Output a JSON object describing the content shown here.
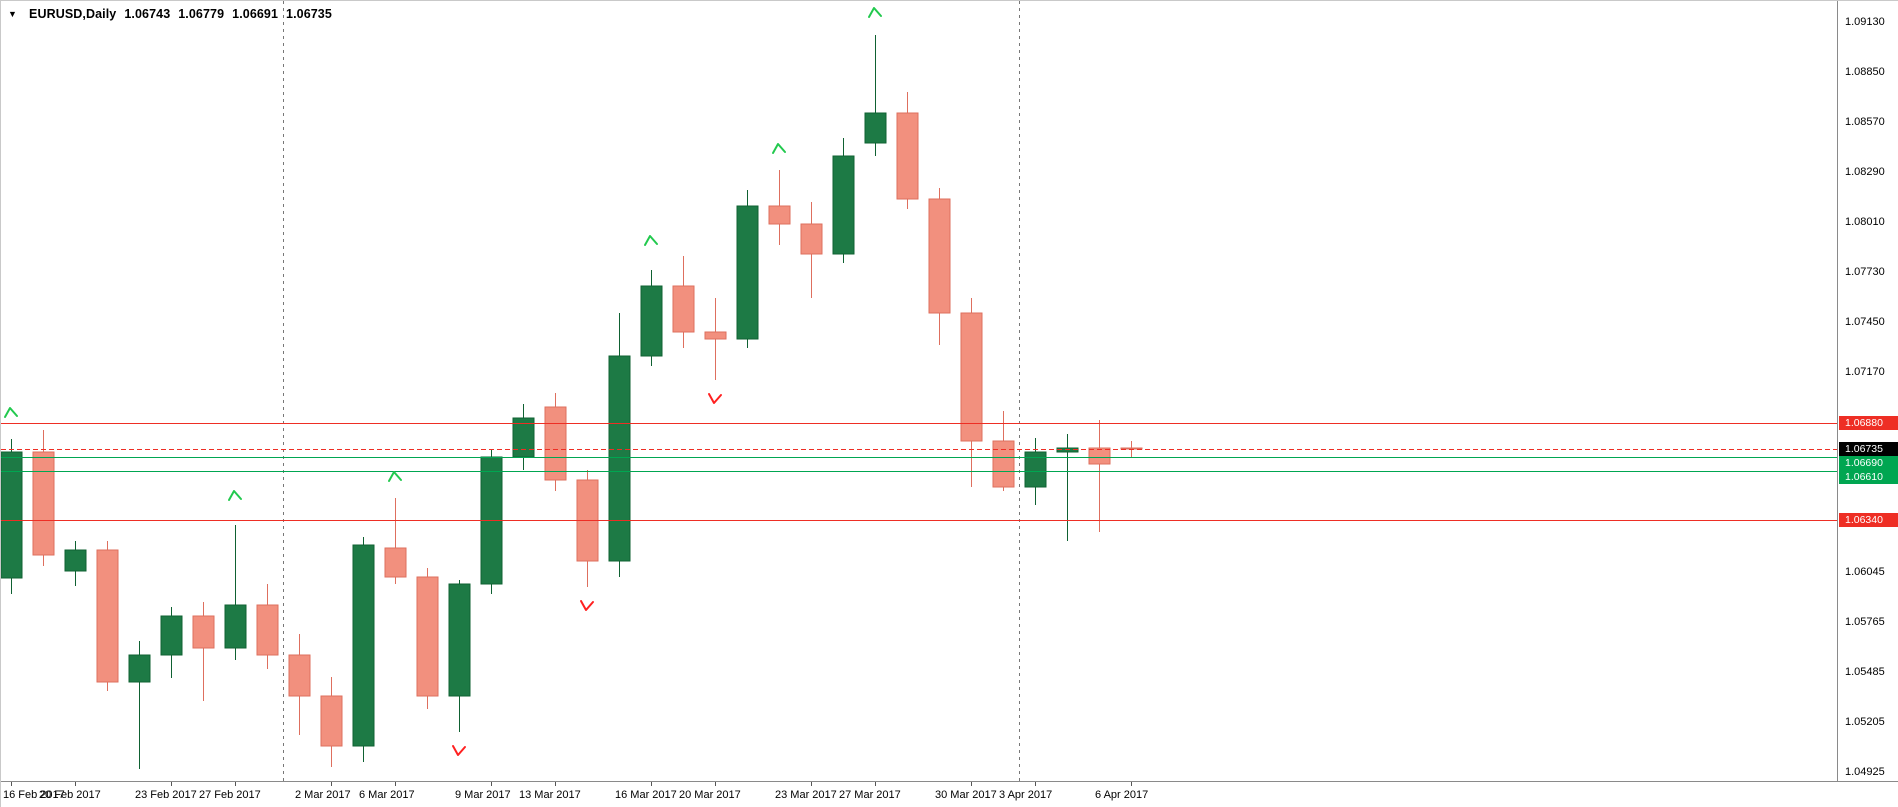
{
  "header": {
    "dropdown_icon": "▼",
    "symbol_label": "EURUSD,Daily",
    "open": "1.06743",
    "high": "1.06779",
    "low": "1.06691",
    "close": "1.06735"
  },
  "colors": {
    "background": "#ffffff",
    "text": "#000000",
    "bull_fill": "#1d7a45",
    "bull_stroke": "#0f6132",
    "bear_fill": "#f2907e",
    "bear_stroke": "#de6f5e",
    "line_red": "#ee2e24",
    "line_green": "#00a651",
    "last_price_bg": "#000000",
    "separator": "#777777",
    "arrow_up": "#22c94e",
    "arrow_down": "#ff2020"
  },
  "chart_data": {
    "type": "candlestick",
    "title": "EURUSD,Daily",
    "symbol": "EURUSD",
    "timeframe": "Daily",
    "grid": "off",
    "price_axis": {
      "visible_min": 1.04874,
      "visible_max": 1.09248,
      "ticks": [
        {
          "price": 1.0913,
          "label": "1.09130"
        },
        {
          "price": 1.0885,
          "label": "1.08850"
        },
        {
          "price": 1.0857,
          "label": "1.08570"
        },
        {
          "price": 1.0829,
          "label": "1.08290"
        },
        {
          "price": 1.0801,
          "label": "1.08010"
        },
        {
          "price": 1.0773,
          "label": "1.07730"
        },
        {
          "price": 1.0745,
          "label": "1.07450"
        },
        {
          "price": 1.0717,
          "label": "1.07170"
        },
        {
          "price": 1.0689,
          "label": "1.06890"
        },
        {
          "price": 1.0661,
          "label": "1.06610"
        },
        {
          "price": 1.0633,
          "label": "1.06330"
        },
        {
          "price": 1.06045,
          "label": "1.06045"
        },
        {
          "price": 1.05765,
          "label": "1.05765"
        },
        {
          "price": 1.05485,
          "label": "1.05485"
        },
        {
          "price": 1.05205,
          "label": "1.05205"
        },
        {
          "price": 1.04925,
          "label": "1.04925"
        }
      ]
    },
    "time_axis": {
      "labels": [
        {
          "text": "16 Feb 2017",
          "candle_index": 0
        },
        {
          "text": "20 Feb 2017",
          "candle_index": 2
        },
        {
          "text": "23 Feb 2017",
          "candle_index": 5
        },
        {
          "text": "27 Feb 2017",
          "candle_index": 7
        },
        {
          "text": "2 Mar 2017",
          "candle_index": 10
        },
        {
          "text": "6 Mar 2017",
          "candle_index": 12
        },
        {
          "text": "9 Mar 2017",
          "candle_index": 15
        },
        {
          "text": "13 Mar 2017",
          "candle_index": 17
        },
        {
          "text": "16 Mar 2017",
          "candle_index": 20
        },
        {
          "text": "20 Mar 2017",
          "candle_index": 22
        },
        {
          "text": "23 Mar 2017",
          "candle_index": 25
        },
        {
          "text": "27 Mar 2017",
          "candle_index": 27
        },
        {
          "text": "30 Mar 2017",
          "candle_index": 30
        },
        {
          "text": "3 Apr 2017",
          "candle_index": 32
        },
        {
          "text": "6 Apr 2017",
          "candle_index": 35
        }
      ]
    },
    "candles": [
      {
        "d": "16 Feb 2017",
        "o": 1.0601,
        "h": 1.0679,
        "l": 1.0592,
        "c": 1.0672
      },
      {
        "d": "17 Feb 2017",
        "o": 1.0672,
        "h": 1.0684,
        "l": 1.0608,
        "c": 1.0614
      },
      {
        "d": "20 Feb 2017",
        "o": 1.0605,
        "h": 1.0622,
        "l": 1.0597,
        "c": 1.0617
      },
      {
        "d": "21 Feb 2017",
        "o": 1.0617,
        "h": 1.0622,
        "l": 1.0538,
        "c": 1.0543
      },
      {
        "d": "22 Feb 2017",
        "o": 1.0543,
        "h": 1.0566,
        "l": 1.0494,
        "c": 1.0558
      },
      {
        "d": "23 Feb 2017",
        "o": 1.0558,
        "h": 1.0585,
        "l": 1.0545,
        "c": 1.058
      },
      {
        "d": "24 Feb 2017",
        "o": 1.058,
        "h": 1.0588,
        "l": 1.0532,
        "c": 1.0562
      },
      {
        "d": "27 Feb 2017",
        "o": 1.0562,
        "h": 1.0631,
        "l": 1.0555,
        "c": 1.0586
      },
      {
        "d": "28 Feb 2017",
        "o": 1.0586,
        "h": 1.0598,
        "l": 1.055,
        "c": 1.0558
      },
      {
        "d": "1 Mar 2017",
        "o": 1.0558,
        "h": 1.057,
        "l": 1.0513,
        "c": 1.0535
      },
      {
        "d": "2 Mar 2017",
        "o": 1.0535,
        "h": 1.0546,
        "l": 1.0495,
        "c": 1.0507
      },
      {
        "d": "3 Mar 2017",
        "o": 1.0507,
        "h": 1.0624,
        "l": 1.0498,
        "c": 1.062
      },
      {
        "d": "6 Mar 2017",
        "o": 1.0618,
        "h": 1.0646,
        "l": 1.0598,
        "c": 1.0602
      },
      {
        "d": "7 Mar 2017",
        "o": 1.0602,
        "h": 1.0607,
        "l": 1.0528,
        "c": 1.0535
      },
      {
        "d": "8 Mar 2017",
        "o": 1.0535,
        "h": 1.06,
        "l": 1.0515,
        "c": 1.0598
      },
      {
        "d": "9 Mar 2017",
        "o": 1.0598,
        "h": 1.0673,
        "l": 1.0592,
        "c": 1.0669
      },
      {
        "d": "10 Mar 2017",
        "o": 1.0669,
        "h": 1.0699,
        "l": 1.0662,
        "c": 1.0691
      },
      {
        "d": "13 Mar 2017",
        "o": 1.0697,
        "h": 1.0705,
        "l": 1.065,
        "c": 1.0656
      },
      {
        "d": "14 Mar 2017",
        "o": 1.0656,
        "h": 1.0662,
        "l": 1.0596,
        "c": 1.0611
      },
      {
        "d": "15 Mar 2017",
        "o": 1.0611,
        "h": 1.075,
        "l": 1.0602,
        "c": 1.0726
      },
      {
        "d": "16 Mar 2017",
        "o": 1.0726,
        "h": 1.0774,
        "l": 1.072,
        "c": 1.0765
      },
      {
        "d": "17 Mar 2017",
        "o": 1.0765,
        "h": 1.0782,
        "l": 1.073,
        "c": 1.0739
      },
      {
        "d": "20 Mar 2017",
        "o": 1.0739,
        "h": 1.0758,
        "l": 1.0712,
        "c": 1.0735
      },
      {
        "d": "21 Mar 2017",
        "o": 1.0735,
        "h": 1.0819,
        "l": 1.073,
        "c": 1.081
      },
      {
        "d": "22 Mar 2017",
        "o": 1.081,
        "h": 1.083,
        "l": 1.0788,
        "c": 1.08
      },
      {
        "d": "23 Mar 2017",
        "o": 1.08,
        "h": 1.0812,
        "l": 1.0758,
        "c": 1.0783
      },
      {
        "d": "24 Mar 2017",
        "o": 1.0783,
        "h": 1.0848,
        "l": 1.0778,
        "c": 1.0838
      },
      {
        "d": "27 Mar 2017",
        "o": 1.0845,
        "h": 1.0906,
        "l": 1.0838,
        "c": 1.0862
      },
      {
        "d": "28 Mar 2017",
        "o": 1.0862,
        "h": 1.0874,
        "l": 1.0808,
        "c": 1.0814
      },
      {
        "d": "29 Mar 2017",
        "o": 1.0814,
        "h": 1.082,
        "l": 1.0732,
        "c": 1.075
      },
      {
        "d": "30 Mar 2017",
        "o": 1.075,
        "h": 1.0758,
        "l": 1.0652,
        "c": 1.0678
      },
      {
        "d": "31 Mar 2017",
        "o": 1.0678,
        "h": 1.0695,
        "l": 1.065,
        "c": 1.0652
      },
      {
        "d": "3 Apr 2017",
        "o": 1.0652,
        "h": 1.068,
        "l": 1.0642,
        "c": 1.0672
      },
      {
        "d": "4 Apr 2017",
        "o": 1.0672,
        "h": 1.0682,
        "l": 1.0622,
        "c": 1.0674
      },
      {
        "d": "5 Apr 2017",
        "o": 1.0674,
        "h": 1.069,
        "l": 1.0627,
        "c": 1.0665
      },
      {
        "d": "6 Apr 2017",
        "o": 1.06743,
        "h": 1.06779,
        "l": 1.06691,
        "c": 1.06735
      }
    ],
    "hlines": [
      {
        "price": 1.0688,
        "style": "solid",
        "color_key": "line_red",
        "label": "1.06880"
      },
      {
        "price": 1.0669,
        "style": "solid",
        "color_key": "line_green",
        "label": "1.06690"
      },
      {
        "price": 1.0661,
        "style": "solid",
        "color_key": "line_green",
        "label": "1.06610"
      },
      {
        "price": 1.0634,
        "style": "solid",
        "color_key": "line_red",
        "label": "1.06340"
      }
    ],
    "last_price": {
      "price": 1.06735,
      "label": "1.06735",
      "style": "dashed",
      "color_key": "line_red"
    },
    "month_separators": [
      {
        "before_candle_index": 9,
        "month": "Mar 2017"
      },
      {
        "before_candle_index": 32,
        "month": "Apr 2017"
      }
    ],
    "markers": [
      {
        "candle_index": 0,
        "dir": "up",
        "price": 1.0694
      },
      {
        "candle_index": 7,
        "dir": "up",
        "price": 1.0647
      },
      {
        "candle_index": 12,
        "dir": "up",
        "price": 1.0658
      },
      {
        "candle_index": 14,
        "dir": "down",
        "price": 1.0505
      },
      {
        "candle_index": 18,
        "dir": "down",
        "price": 1.0586
      },
      {
        "candle_index": 20,
        "dir": "up",
        "price": 1.079
      },
      {
        "candle_index": 22,
        "dir": "down",
        "price": 1.0702
      },
      {
        "candle_index": 24,
        "dir": "up",
        "price": 1.0842
      },
      {
        "candle_index": 27,
        "dir": "up",
        "price": 1.0918
      }
    ]
  }
}
